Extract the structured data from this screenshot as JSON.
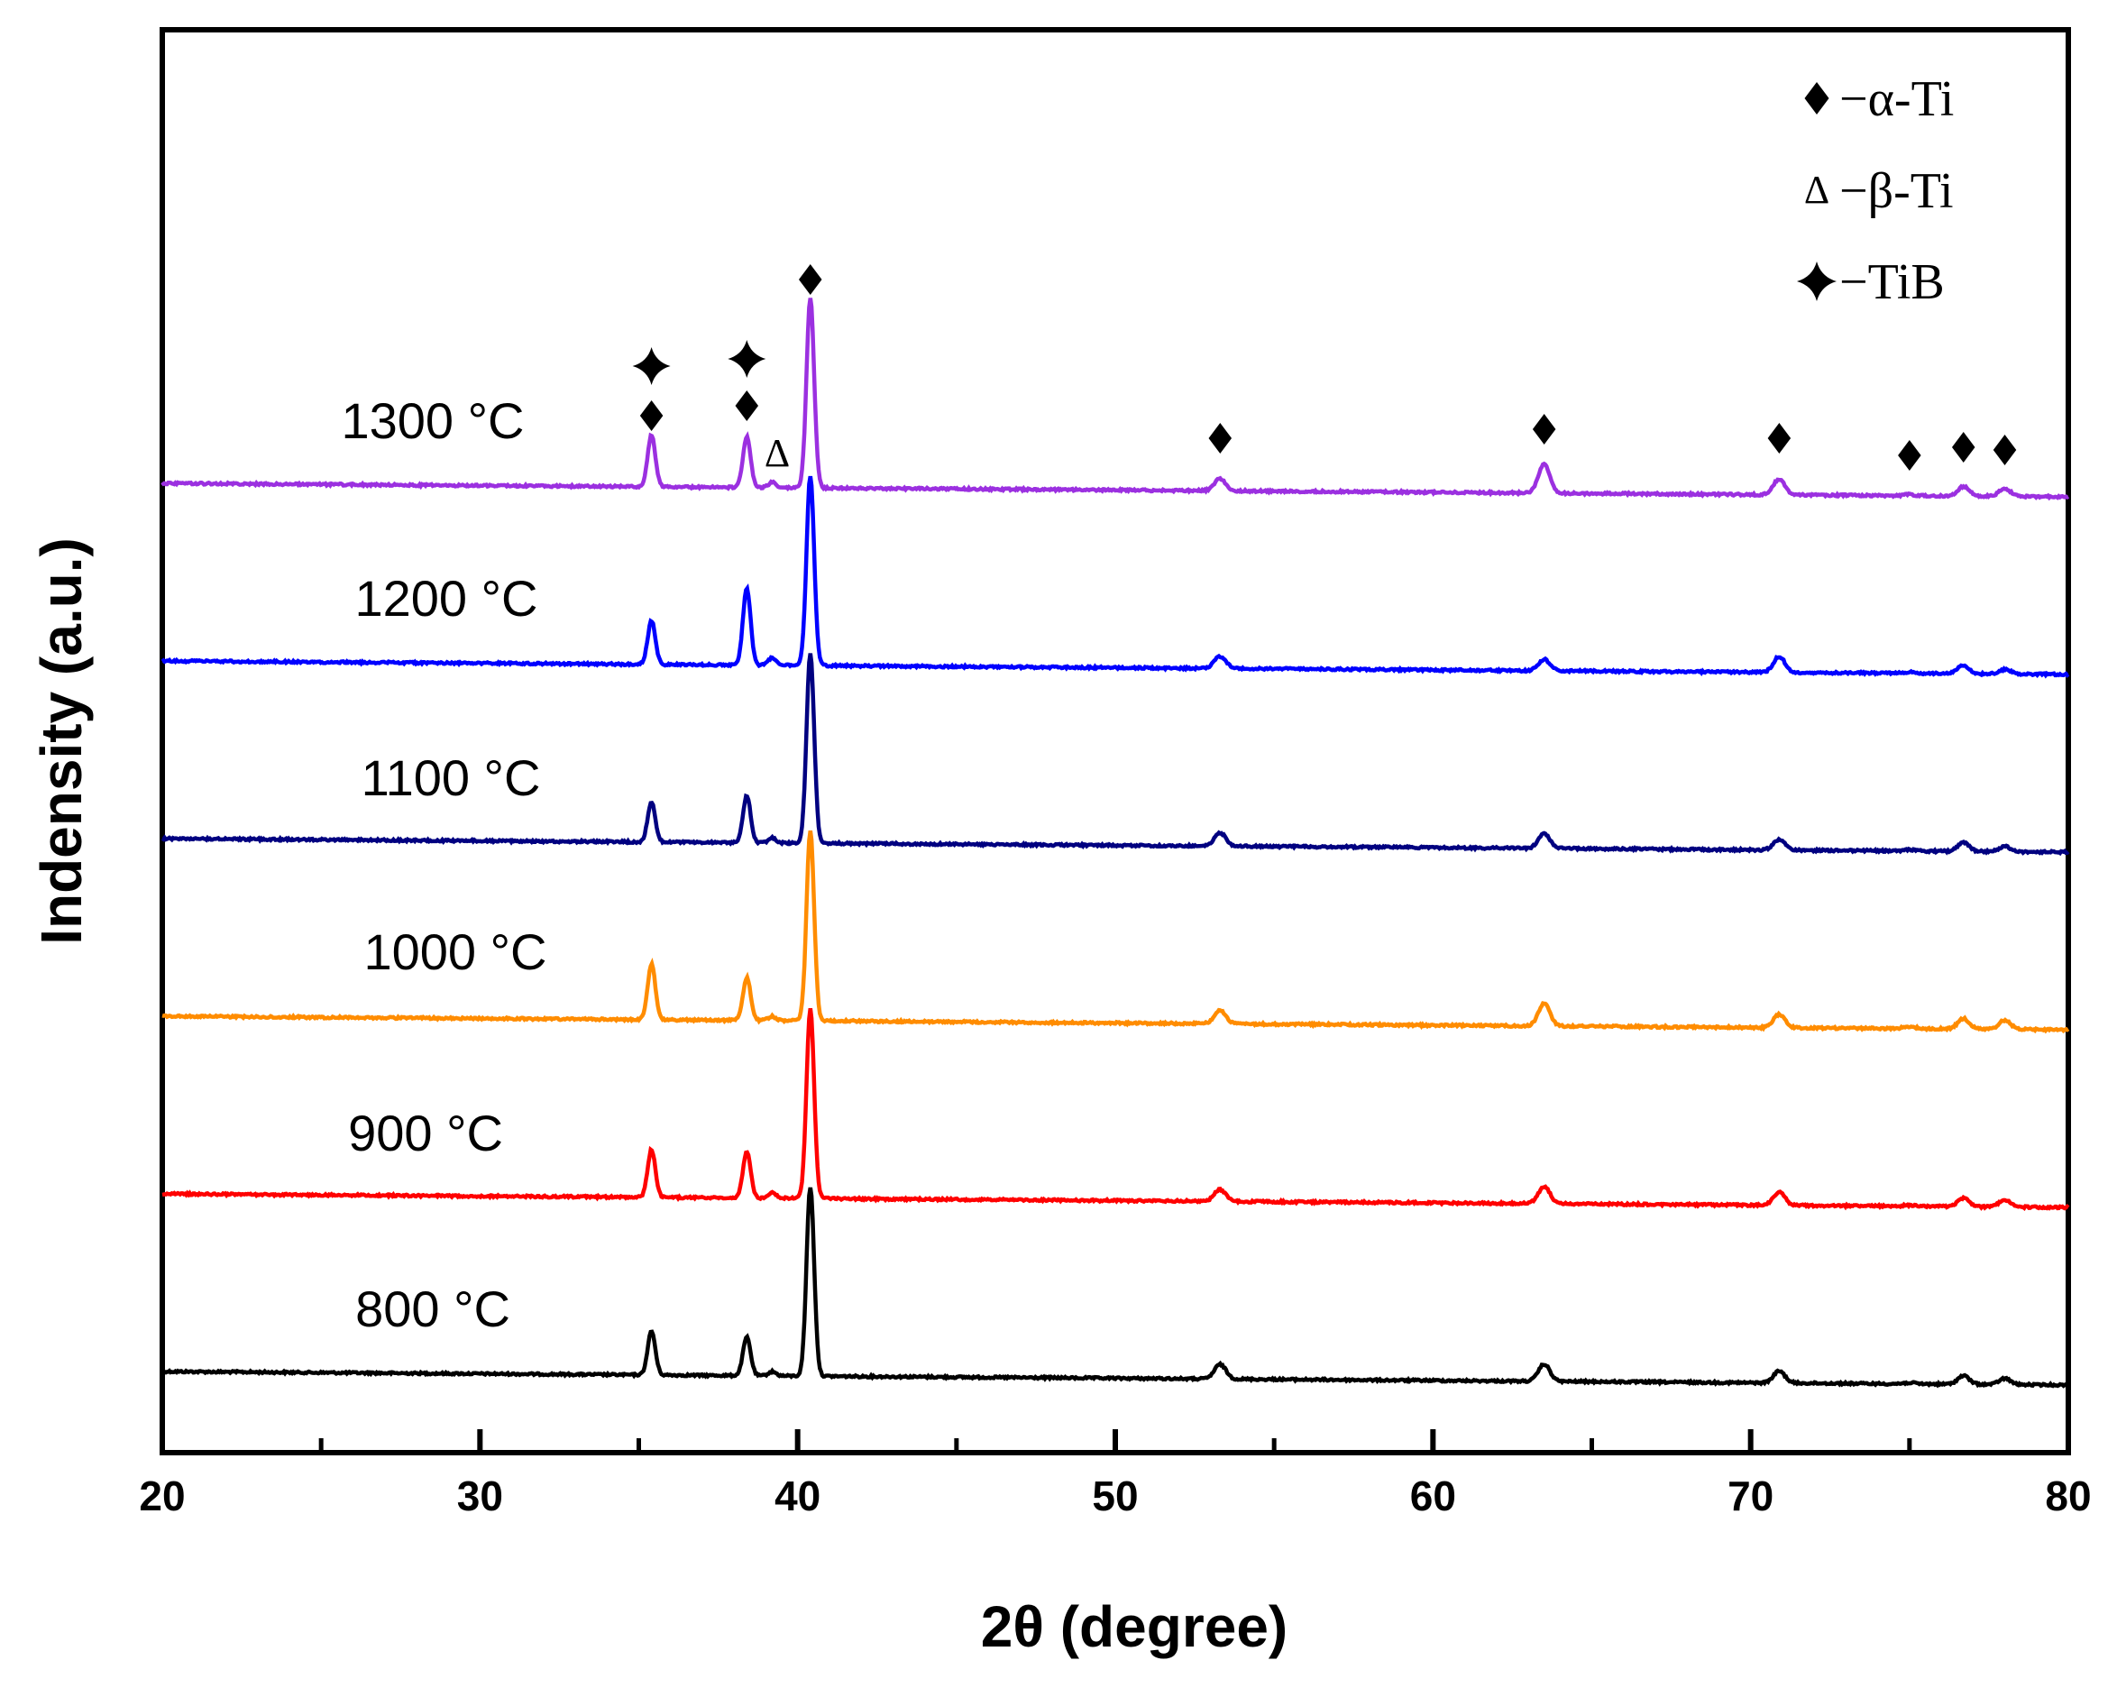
{
  "chart_data": {
    "type": "line",
    "title": "",
    "xlabel": "2θ (degree)",
    "ylabel": "Indensity (a.u.)",
    "xlim": [
      20,
      80
    ],
    "x_ticks": [
      20,
      30,
      40,
      50,
      60,
      70,
      80
    ],
    "x_minor_ticks": [
      25,
      35,
      45,
      55,
      65,
      75
    ],
    "y_ticks": [],
    "grid": false,
    "legend_position": "top-right",
    "peaks": [
      {
        "pos": 35.4,
        "amp": 0.42
      },
      {
        "pos": 38.4,
        "amp": 0.45
      },
      {
        "pos": 39.2,
        "amp": 0.11
      },
      {
        "pos": 40.4,
        "amp": 1.0
      },
      {
        "pos": 53.3,
        "amp": 0.14
      },
      {
        "pos": 63.5,
        "amp": 0.2
      },
      {
        "pos": 70.9,
        "amp": 0.14
      },
      {
        "pos": 75.0,
        "amp": 0.03
      },
      {
        "pos": 76.7,
        "amp": 0.1
      },
      {
        "pos": 78.0,
        "amp": 0.08
      }
    ],
    "series": [
      {
        "name": "800 °C",
        "color": "#000000",
        "baseline_start": 0,
        "baseline_slope": -0.015,
        "peak_scale": [
          0.55,
          0.45,
          0.2,
          1.0,
          0.55,
          0.45,
          0.45,
          0.2,
          0.45,
          0.4
        ]
      },
      {
        "name": "900 °C",
        "color": "#ff0000",
        "baseline_start": 1.0,
        "baseline_slope": -0.012,
        "peak_scale": [
          0.6,
          0.55,
          0.3,
          1.0,
          0.45,
          0.45,
          0.5,
          0.2,
          0.45,
          0.45
        ]
      },
      {
        "name": "1000 °C",
        "color": "#ff8c00",
        "baseline_start": 2.0,
        "baseline_slope": -0.012,
        "peak_scale": [
          0.7,
          0.5,
          0.2,
          1.0,
          0.5,
          0.6,
          0.5,
          0.4,
          0.55,
          0.6
        ]
      },
      {
        "name": "1100 °C",
        "color": "#000080",
        "baseline_start": 3.0,
        "baseline_slope": -0.012,
        "peak_scale": [
          0.5,
          0.55,
          0.25,
          1.0,
          0.5,
          0.4,
          0.4,
          0.2,
          0.45,
          0.35
        ]
      },
      {
        "name": "1200 °C",
        "color": "#0000ff",
        "baseline_start": 4.0,
        "baseline_slope": -0.012,
        "peak_scale": [
          0.55,
          0.9,
          0.35,
          1.0,
          0.45,
          0.3,
          0.6,
          0.2,
          0.45,
          0.3
        ]
      },
      {
        "name": "1300 °C",
        "color": "#9b30e0",
        "baseline_start": 5.0,
        "baseline_slope": -0.012,
        "peak_scale": [
          0.65,
          0.6,
          0.25,
          1.0,
          0.45,
          0.75,
          0.6,
          0.2,
          0.5,
          0.5
        ]
      }
    ],
    "peak_markers": [
      {
        "x": 35.4,
        "marker": "diamond",
        "label": "α-Ti"
      },
      {
        "x": 35.4,
        "marker": "star",
        "label": "TiB"
      },
      {
        "x": 38.4,
        "marker": "diamond",
        "label": "α-Ti"
      },
      {
        "x": 38.4,
        "marker": "star",
        "label": "TiB"
      },
      {
        "x": 39.3,
        "marker": "triangle",
        "label": "β-Ti"
      },
      {
        "x": 40.4,
        "marker": "diamond",
        "label": "α-Ti"
      },
      {
        "x": 53.3,
        "marker": "diamond",
        "label": "α-Ti"
      },
      {
        "x": 63.5,
        "marker": "diamond",
        "label": "α-Ti"
      },
      {
        "x": 70.9,
        "marker": "diamond",
        "label": "α-Ti"
      },
      {
        "x": 75.0,
        "marker": "diamond",
        "label": "α-Ti"
      },
      {
        "x": 76.7,
        "marker": "diamond",
        "label": "α-Ti"
      },
      {
        "x": 78.0,
        "marker": "diamond",
        "label": "α-Ti"
      }
    ],
    "delta_annotation": "Δ",
    "legend": [
      {
        "marker": "diamond",
        "text": "−α-Ti"
      },
      {
        "marker": "triangle",
        "text": "−β-Ti"
      },
      {
        "marker": "star",
        "text": "−TiB"
      }
    ]
  }
}
